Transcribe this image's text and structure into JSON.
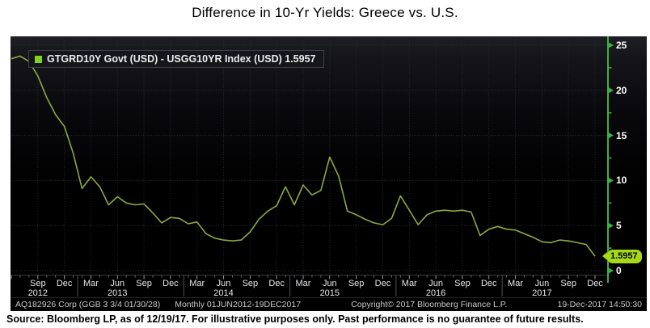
{
  "title": "Difference in 10-Yr Yields: Greece vs. U.S.",
  "legend": {
    "text": "GTGRD10Y Govt (USD) - USGG10YR Index (USD) 1.5957",
    "marker_color": "#7fd41f"
  },
  "footer": {
    "security": "AQ182926 Corp (GGB 3 3/4 01/30/28)",
    "range": "Monthly 01JUN2012-19DEC2017",
    "copyright": "Copyright© 2017 Bloomberg Finance L.P.",
    "datetime": "19-Dec-2017 14:50:30"
  },
  "source_note": "Source: Bloomberg LP, as of 12/19/17. For illustrative purposes only. Past performance is no guarantee of future results.",
  "axis_right": {
    "last_label": "1.5957"
  },
  "colors": {
    "line": "#8caa3e",
    "axis": "#3cb043",
    "badge": "#a8d916",
    "tick_minor": "#6a6a6a",
    "tick_quarter": "#9a9a9a",
    "separator": "#52525a",
    "baseline": "#3a3a42"
  },
  "chart_data": {
    "type": "line",
    "title": "Difference in 10-Yr Yields: Greece vs. U.S.",
    "frequency": "Monthly",
    "x_start": "Jun 2012",
    "x_end": "Dec 2017",
    "ylim": [
      0,
      26
    ],
    "yticks": [
      0,
      5,
      10,
      15,
      20,
      25
    ],
    "y_minor_ticks": [
      2.5,
      7.5,
      12.5,
      17.5,
      22.5
    ],
    "grid": "dotted",
    "legend_position": "top-left",
    "axis_side": "right",
    "series": [
      {
        "name": "GTGRD10Y Govt (USD) - USGG10YR Index (USD)",
        "last_value": 1.5957,
        "values": [
          23.5,
          23.8,
          23.2,
          21.6,
          19.2,
          17.3,
          16.0,
          13.0,
          9.1,
          10.4,
          9.3,
          7.3,
          8.2,
          7.5,
          7.3,
          7.4,
          6.4,
          5.3,
          5.9,
          5.8,
          5.2,
          5.4,
          4.1,
          3.6,
          3.4,
          3.3,
          3.4,
          4.3,
          5.7,
          6.6,
          7.2,
          9.3,
          7.3,
          9.5,
          8.4,
          8.9,
          12.6,
          10.5,
          6.6,
          6.2,
          5.7,
          5.3,
          5.1,
          5.8,
          8.3,
          6.7,
          5.1,
          6.2,
          6.6,
          6.7,
          6.6,
          6.7,
          6.5,
          3.9,
          4.6,
          4.9,
          4.6,
          4.5,
          4.1,
          3.7,
          3.2,
          3.1,
          3.4,
          3.3,
          3.1,
          2.9,
          1.5957
        ]
      }
    ],
    "xticks": [
      {
        "m": 3,
        "label": "Sep",
        "year": "2012"
      },
      {
        "m": 6,
        "label": "Dec"
      },
      {
        "m": 9,
        "label": "Mar"
      },
      {
        "m": 12,
        "label": "Jun",
        "year": "2013"
      },
      {
        "m": 15,
        "label": "Sep"
      },
      {
        "m": 18,
        "label": "Dec"
      },
      {
        "m": 21,
        "label": "Mar"
      },
      {
        "m": 24,
        "label": "Jun",
        "year": "2014"
      },
      {
        "m": 27,
        "label": "Sep"
      },
      {
        "m": 30,
        "label": "Dec"
      },
      {
        "m": 33,
        "label": "Mar"
      },
      {
        "m": 36,
        "label": "Jun",
        "year": "2015"
      },
      {
        "m": 39,
        "label": "Sep"
      },
      {
        "m": 42,
        "label": "Dec"
      },
      {
        "m": 45,
        "label": "Mar"
      },
      {
        "m": 48,
        "label": "Jun",
        "year": "2016"
      },
      {
        "m": 51,
        "label": "Sep"
      },
      {
        "m": 54,
        "label": "Dec"
      },
      {
        "m": 57,
        "label": "Mar"
      },
      {
        "m": 60,
        "label": "Jun",
        "year": "2017"
      },
      {
        "m": 63,
        "label": "Sep"
      },
      {
        "m": 66,
        "label": "Dec"
      }
    ],
    "year_separators_m": [
      7.5,
      19.5,
      31.5,
      43.5,
      55.5
    ]
  }
}
